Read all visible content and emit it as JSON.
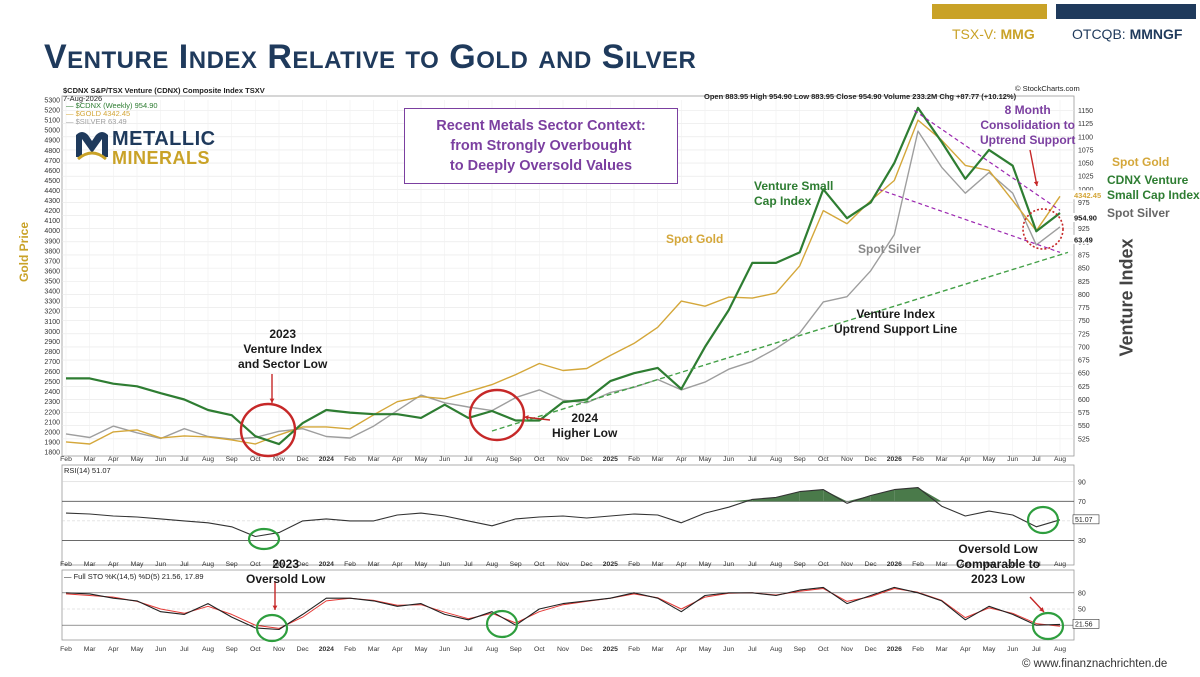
{
  "header": {
    "title": "Venture Index Relative to Gold and Silver",
    "tsx_prefix": "TSX-V: ",
    "tsx_symbol": "MMG",
    "otc_prefix": "OTCQB: ",
    "otc_symbol": "MMNGF",
    "tsx_color": "#c9a227",
    "otc_color": "#1f3a5c"
  },
  "logo": {
    "line1": "METALLIC",
    "line2": "MINERALS",
    "icon": "metallic-minerals-m-icon"
  },
  "context_box": {
    "line1": "Recent Metals Sector Context:",
    "line2": "from Strongly Overbought",
    "line3": "to Deeply Oversold Values"
  },
  "chart_header": {
    "symbol_line": "$CDNX S&P/TSX Venture (CDNX) Composite Index  TSXV",
    "date": "7-Aug-2026",
    "legend_cdnx": "— $CDNX (Weekly) 954.90",
    "legend_gold": "— $GOLD 4342.45",
    "legend_silver": "— $SILVER 63.49",
    "ohlc": "Open 883.95  High 954.90  Low 883.95  Close 954.90  Volume 233.2M  Chg +87.77 (+10.12%)",
    "source": "© StockCharts.com",
    "rsi_label": "RSI(14) 51.07",
    "sto_label": "— Full STO %K(14,5) %D(5) 21.56, 17.89"
  },
  "annotations": {
    "venture_low_2023": [
      "2023",
      "Venture Index",
      "and Sector Low"
    ],
    "higher_low_2024": [
      "2024",
      "Higher Low"
    ],
    "spot_gold_mid": "Spot Gold",
    "venture_small_cap": [
      "Venture Small",
      "Cap Index"
    ],
    "spot_silver_mid": "Spot Silver",
    "uptrend_support": [
      "Venture Index",
      "Uptrend Support Line"
    ],
    "consolidation": [
      "8 Month",
      "Consolidation to",
      "Uptrend Support"
    ],
    "right_gold": "Spot Gold",
    "right_cdnx": [
      "CDNX Venture",
      "Small Cap Index"
    ],
    "right_silver": "Spot Silver",
    "oversold_2023": [
      "2023",
      "Oversold Low"
    ],
    "oversold_now": [
      "Oversold Low",
      "Comparable to",
      "2023 Low"
    ]
  },
  "axis_titles": {
    "gold_price": "Gold Price",
    "venture_index": "Venture Index"
  },
  "watermark": "© www.finanznachrichten.de",
  "colors": {
    "cdnx": "#2e7d32",
    "gold": "#d4a73a",
    "silver": "#9e9e9e",
    "trend": "#43a047",
    "consolidation": "#9c27b0",
    "circle": "#c62828",
    "oversold_circle": "#2e9e3e",
    "navy": "#1f3a5c",
    "purple_text": "#7b3fa0",
    "stoch_d": "#e53935"
  },
  "chart_data": {
    "type": "line",
    "x": [
      "2023-02",
      "2023-03",
      "2023-04",
      "2023-05",
      "2023-06",
      "2023-07",
      "2023-08",
      "2023-09",
      "2023-10",
      "2023-11",
      "2023-12",
      "2024-01",
      "2024-02",
      "2024-03",
      "2024-04",
      "2024-05",
      "2024-06",
      "2024-07",
      "2024-08",
      "2024-09",
      "2024-10",
      "2024-11",
      "2024-12",
      "2025-01",
      "2025-02",
      "2025-03",
      "2025-04",
      "2025-05",
      "2025-06",
      "2025-07",
      "2025-08",
      "2025-09",
      "2025-10",
      "2025-11",
      "2025-12",
      "2026-01",
      "2026-02",
      "2026-03",
      "2026-04",
      "2026-05",
      "2026-06",
      "2026-07",
      "2026-08"
    ],
    "x_tick_labels": [
      "Feb",
      "Mar",
      "Apr",
      "May",
      "Jun",
      "Jul",
      "Aug",
      "Sep",
      "Oct",
      "Nov",
      "Dec",
      "2024",
      "Feb",
      "Mar",
      "Apr",
      "May",
      "Jun",
      "Jul",
      "Aug",
      "Sep",
      "Oct",
      "Nov",
      "Dec",
      "2025",
      "Feb",
      "Mar",
      "Apr",
      "May",
      "Jun",
      "Jul",
      "Aug",
      "Sep",
      "Oct",
      "Nov",
      "Dec",
      "2026",
      "Feb",
      "Mar",
      "Apr",
      "May",
      "Jun",
      "Jul",
      "Aug"
    ],
    "series": [
      {
        "name": "$CDNX (Weekly) 954.90",
        "axis": "right",
        "values": [
          640,
          640,
          630,
          625,
          612,
          600,
          580,
          570,
          530,
          515,
          555,
          580,
          575,
          572,
          572,
          565,
          590,
          565,
          578,
          560,
          560,
          595,
          600,
          635,
          650,
          660,
          620,
          700,
          770,
          860,
          860,
          880,
          1000,
          945,
          975,
          1050,
          1155,
          1090,
          1020,
          1075,
          1045,
          920,
          954.9
        ]
      },
      {
        "name": "$GOLD 4342.45",
        "axis": "left",
        "values": [
          1900,
          1880,
          2000,
          2020,
          1940,
          1960,
          1950,
          1920,
          1880,
          1970,
          2050,
          2050,
          2030,
          2170,
          2300,
          2350,
          2330,
          2400,
          2470,
          2570,
          2680,
          2610,
          2630,
          2760,
          2880,
          3040,
          3300,
          3250,
          3340,
          3330,
          3380,
          3650,
          4200,
          4070,
          4300,
          4500,
          5100,
          4900,
          4650,
          4600,
          4300,
          4000,
          4342.45
        ]
      },
      {
        "name": "$SILVER 63.49",
        "axis": "none",
        "values": [
          23.5,
          22.8,
          25.0,
          23.7,
          22.6,
          24.5,
          23.0,
          22.5,
          22.8,
          24.0,
          24.5,
          23.0,
          22.7,
          25.0,
          28.0,
          31.0,
          29.5,
          28.7,
          28.0,
          30.5,
          32.0,
          30.0,
          29.5,
          31.5,
          32.5,
          34.0,
          32.0,
          33.5,
          36.0,
          37.5,
          40.0,
          43.0,
          49.0,
          50.0,
          55.0,
          62.0,
          82.0,
          75.0,
          70.0,
          74.0,
          70.0,
          60.0,
          63.49
        ]
      }
    ],
    "left_axis": {
      "label": "Gold Price",
      "ticks": [
        1800,
        1900,
        2000,
        2100,
        2200,
        2300,
        2400,
        2500,
        2600,
        2700,
        2800,
        2900,
        3000,
        3100,
        3200,
        3300,
        3400,
        3500,
        3600,
        3700,
        3800,
        3900,
        4000,
        4100,
        4200,
        4300,
        4400,
        4500,
        4600,
        4700,
        4800,
        4900,
        5000,
        5100,
        5200,
        5300
      ],
      "range": [
        1800,
        5300
      ]
    },
    "right_axis": {
      "label": "Venture Index",
      "ticks": [
        525,
        550,
        575,
        600,
        625,
        650,
        675,
        700,
        725,
        750,
        775,
        800,
        825,
        850,
        875,
        900,
        925,
        950,
        975,
        1000,
        1025,
        1050,
        1075,
        1100,
        1125,
        1150
      ],
      "range": [
        500,
        1170
      ]
    },
    "right_value_labels": [
      "4342.45",
      "954.90",
      "63.49"
    ],
    "trendline": {
      "name": "Venture Index Uptrend Support Line",
      "from": [
        "2024-08",
        540
      ],
      "to": [
        "2026-08",
        880
      ]
    },
    "rsi": {
      "label": "RSI(14) 51.07",
      "current": 51.07,
      "ticks": [
        30,
        50,
        70,
        90
      ],
      "values": [
        58,
        57,
        55,
        54,
        52,
        50,
        48,
        44,
        34,
        38,
        50,
        52,
        50,
        50,
        56,
        58,
        55,
        50,
        45,
        52,
        54,
        55,
        53,
        55,
        57,
        56,
        48,
        58,
        64,
        72,
        74,
        80,
        82,
        68,
        76,
        82,
        84,
        65,
        55,
        60,
        56,
        44,
        51.07
      ]
    },
    "stochastic": {
      "label": "Full STO %K(14,5) %D(5) 21.56, 17.89",
      "k_current": 21.56,
      "d_current": 17.89,
      "ticks": [
        20,
        50,
        80
      ],
      "k": [
        80,
        78,
        70,
        65,
        45,
        40,
        60,
        35,
        15,
        12,
        40,
        70,
        70,
        65,
        55,
        60,
        40,
        30,
        45,
        20,
        50,
        60,
        65,
        70,
        80,
        70,
        45,
        75,
        80,
        80,
        75,
        85,
        90,
        60,
        75,
        90,
        80,
        65,
        30,
        55,
        40,
        20,
        21.56
      ],
      "d": [
        78,
        75,
        72,
        64,
        50,
        42,
        55,
        40,
        20,
        14,
        35,
        65,
        70,
        66,
        57,
        58,
        44,
        32,
        42,
        24,
        45,
        58,
        64,
        70,
        78,
        71,
        50,
        72,
        79,
        80,
        76,
        83,
        88,
        64,
        73,
        88,
        81,
        66,
        34,
        52,
        42,
        23,
        17.89
      ]
    }
  }
}
